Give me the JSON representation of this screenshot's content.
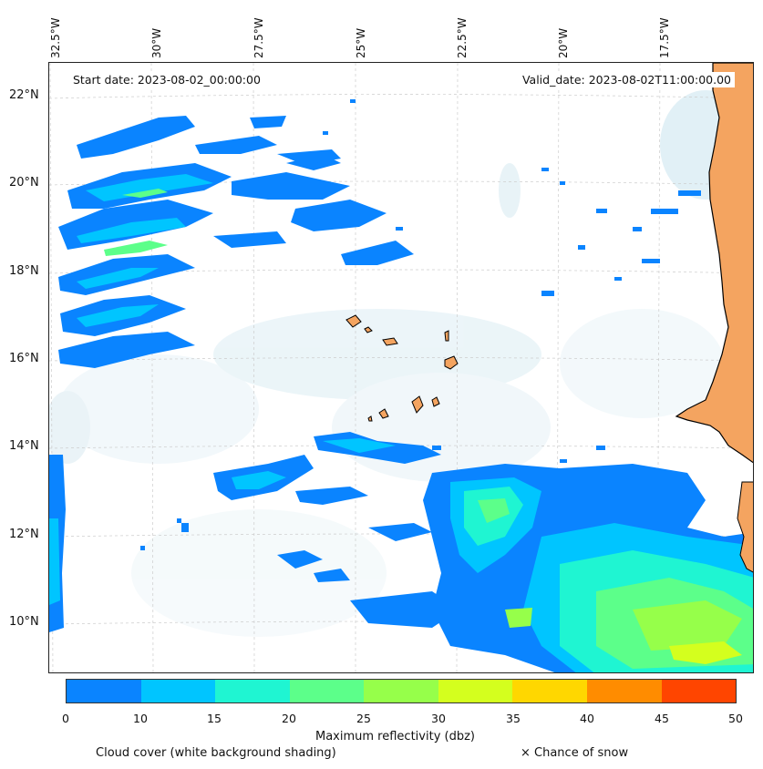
{
  "map": {
    "lon_labels": [
      "32.5°W",
      "30°W",
      "27.5°W",
      "25°W",
      "22.5°W",
      "20°W",
      "17.5°W"
    ],
    "lat_labels": [
      "22°N",
      "20°N",
      "18°N",
      "16°N",
      "14°N",
      "12°N",
      "10°N"
    ],
    "start_date": "Start date: 2023-08-02_00:00:00",
    "valid_date": "Valid_date: 2023-08-02T11:00:00.00",
    "land_color": "#f4a460",
    "coastline_color": "#000000",
    "gridlines": true
  },
  "colorbar": {
    "label": "Maximum reflectivity (dbz)",
    "ticks": [
      "0",
      "10",
      "15",
      "20",
      "25",
      "30",
      "35",
      "40",
      "45",
      "50"
    ],
    "colors": [
      "#0a84ff",
      "#00c5ff",
      "#1ff5d2",
      "#5cff8a",
      "#96ff4a",
      "#d4ff1e",
      "#ffd700",
      "#ff8c00",
      "#ff4500"
    ]
  },
  "footer": {
    "cloud_cover": "Cloud cover (white background shading)",
    "snow": "× Chance of snow"
  }
}
